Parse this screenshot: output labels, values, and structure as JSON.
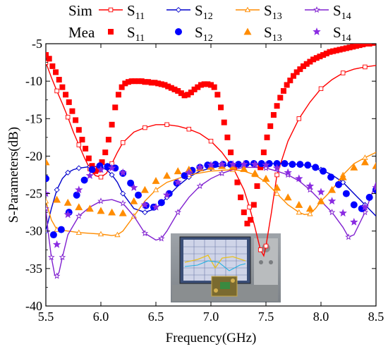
{
  "chart_data": {
    "type": "line",
    "xlabel": "Frequency(GHz)",
    "ylabel": "S-Parameters(dB)",
    "xlim": [
      5.5,
      8.5
    ],
    "ylim": [
      -40,
      -5
    ],
    "xticks": [
      "5.5",
      "6.0",
      "6.5",
      "7.0",
      "7.5",
      "8.0",
      "8.5"
    ],
    "yticks": [
      "-5",
      "-10",
      "-15",
      "-20",
      "-25",
      "-30",
      "-35",
      "-40"
    ],
    "grid": false,
    "legend": {
      "sim_label": "Sim",
      "mea_label": "Mea",
      "placement": "top",
      "entries": [
        {
          "base": "S",
          "sub": "11"
        },
        {
          "base": "S",
          "sub": "12"
        },
        {
          "base": "S",
          "sub": "13"
        },
        {
          "base": "S",
          "sub": "14"
        }
      ]
    },
    "inset": "photo of measurement setup (vector network analyzer with antenna under test)",
    "series": [
      {
        "name": "Sim S11",
        "kind": "sim",
        "color": "#ff0000",
        "marker": "square-open",
        "x": [
          5.5,
          5.55,
          5.6,
          5.65,
          5.7,
          5.75,
          5.8,
          5.85,
          5.9,
          5.95,
          6.0,
          6.05,
          6.1,
          6.15,
          6.2,
          6.3,
          6.4,
          6.5,
          6.6,
          6.7,
          6.8,
          6.9,
          7.0,
          7.1,
          7.2,
          7.3,
          7.35,
          7.4,
          7.45,
          7.48,
          7.5,
          7.55,
          7.6,
          7.7,
          7.8,
          7.9,
          8.0,
          8.1,
          8.2,
          8.3,
          8.4,
          8.5
        ],
        "y": [
          -7.5,
          -9.5,
          -11.3,
          -13.0,
          -14.8,
          -16.8,
          -18.5,
          -20.2,
          -21.7,
          -22.6,
          -22.8,
          -22.3,
          -21.0,
          -19.5,
          -18.2,
          -16.8,
          -16.2,
          -15.8,
          -15.8,
          -16.0,
          -16.4,
          -17.0,
          -18.0,
          -19.5,
          -21.5,
          -24.5,
          -26.8,
          -29.5,
          -32.5,
          -33.3,
          -32.0,
          -27.5,
          -22.5,
          -18.0,
          -15.0,
          -12.8,
          -11.0,
          -9.8,
          -8.9,
          -8.4,
          -8.1,
          -7.9
        ]
      },
      {
        "name": "Sim S12",
        "kind": "sim",
        "color": "#0000cc",
        "marker": "diamond-open",
        "x": [
          5.5,
          5.55,
          5.6,
          5.65,
          5.7,
          5.75,
          5.8,
          5.85,
          5.9,
          5.95,
          6.0,
          6.05,
          6.1,
          6.15,
          6.2,
          6.3,
          6.4,
          6.5,
          6.6,
          6.7,
          6.8,
          6.9,
          7.0,
          7.1,
          7.2,
          7.3,
          7.4,
          7.5,
          7.6,
          7.7,
          7.8,
          7.9,
          8.0,
          8.1,
          8.2,
          8.3,
          8.4,
          8.5
        ],
        "y": [
          -30.0,
          -27.0,
          -24.5,
          -23.0,
          -22.2,
          -21.8,
          -21.6,
          -21.5,
          -21.4,
          -21.4,
          -21.5,
          -21.8,
          -22.5,
          -23.5,
          -25.0,
          -27.0,
          -27.5,
          -27.0,
          -25.5,
          -24.0,
          -22.8,
          -22.0,
          -21.6,
          -21.3,
          -21.2,
          -21.1,
          -21.1,
          -21.0,
          -21.0,
          -21.0,
          -21.1,
          -21.3,
          -21.8,
          -22.5,
          -23.5,
          -25.0,
          -26.5,
          -28.0
        ]
      },
      {
        "name": "Sim S13",
        "kind": "sim",
        "color": "#ff8c00",
        "marker": "triangle-open",
        "x": [
          5.5,
          5.55,
          5.6,
          5.7,
          5.8,
          5.9,
          6.0,
          6.1,
          6.15,
          6.2,
          6.3,
          6.4,
          6.5,
          6.6,
          6.8,
          7.0,
          7.2,
          7.3,
          7.4,
          7.5,
          7.6,
          7.7,
          7.8,
          7.85,
          7.9,
          7.95,
          8.0,
          8.1,
          8.2,
          8.3,
          8.4,
          8.5
        ],
        "y": [
          -26.0,
          -28.5,
          -29.8,
          -30.0,
          -30.2,
          -30.3,
          -30.4,
          -30.6,
          -30.5,
          -30.0,
          -28.0,
          -26.0,
          -24.5,
          -23.5,
          -22.5,
          -22.0,
          -21.8,
          -22.0,
          -22.5,
          -23.5,
          -25.0,
          -26.5,
          -27.5,
          -27.8,
          -27.7,
          -27.0,
          -26.0,
          -24.5,
          -22.5,
          -21.0,
          -20.2,
          -19.5
        ]
      },
      {
        "name": "Sim S14",
        "kind": "sim",
        "color": "#8020d0",
        "marker": "star-open",
        "x": [
          5.5,
          5.52,
          5.55,
          5.58,
          5.6,
          5.62,
          5.65,
          5.7,
          5.8,
          5.9,
          6.0,
          6.1,
          6.2,
          6.3,
          6.4,
          6.5,
          6.55,
          6.6,
          6.7,
          6.8,
          6.9,
          7.0,
          7.1,
          7.2,
          7.3,
          7.4,
          7.5,
          7.6,
          7.7,
          7.8,
          7.9,
          8.0,
          8.1,
          8.2,
          8.25,
          8.3,
          8.4,
          8.5
        ],
        "y": [
          -27.0,
          -30.0,
          -33.5,
          -35.8,
          -36.0,
          -35.5,
          -33.5,
          -30.5,
          -28.0,
          -26.8,
          -26.0,
          -25.8,
          -26.3,
          -28.0,
          -30.3,
          -31.2,
          -31.0,
          -30.0,
          -27.5,
          -25.5,
          -24.0,
          -23.0,
          -22.3,
          -21.8,
          -21.5,
          -21.5,
          -21.6,
          -22.0,
          -22.5,
          -23.3,
          -24.5,
          -26.0,
          -27.5,
          -29.5,
          -30.8,
          -30.5,
          -27.5,
          -23.5
        ]
      },
      {
        "name": "Mea S11",
        "kind": "mea",
        "color": "#ff0000",
        "marker": "square",
        "x": [
          5.5,
          5.53,
          5.56,
          5.59,
          5.62,
          5.65,
          5.68,
          5.71,
          5.74,
          5.77,
          5.8,
          5.83,
          5.86,
          5.89,
          5.92,
          5.95,
          5.98,
          6.01,
          6.04,
          6.07,
          6.1,
          6.13,
          6.16,
          6.19,
          6.22,
          6.25,
          6.28,
          6.31,
          6.34,
          6.37,
          6.4,
          6.43,
          6.46,
          6.49,
          6.52,
          6.55,
          6.58,
          6.61,
          6.64,
          6.67,
          6.7,
          6.73,
          6.76,
          6.79,
          6.82,
          6.85,
          6.88,
          6.91,
          6.94,
          6.97,
          7.0,
          7.03,
          7.06,
          7.09,
          7.12,
          7.15,
          7.18,
          7.21,
          7.24,
          7.27,
          7.3,
          7.33,
          7.36,
          7.39,
          7.42,
          7.45,
          7.48,
          7.51,
          7.54,
          7.57,
          7.6,
          7.63,
          7.66,
          7.69,
          7.72,
          7.75,
          7.78,
          7.81,
          7.84,
          7.87,
          7.9,
          7.93,
          7.96,
          7.99,
          8.02,
          8.05,
          8.08,
          8.11,
          8.14,
          8.17,
          8.2,
          8.23,
          8.26,
          8.29,
          8.32,
          8.35,
          8.38,
          8.41,
          8.44,
          8.47,
          8.5
        ],
        "y": [
          -6.5,
          -7.0,
          -8.0,
          -8.8,
          -9.8,
          -10.8,
          -11.8,
          -12.8,
          -14.0,
          -15.2,
          -16.5,
          -17.8,
          -19.0,
          -20.3,
          -21.3,
          -22.0,
          -21.8,
          -20.8,
          -19.5,
          -17.8,
          -15.8,
          -13.5,
          -11.8,
          -10.8,
          -10.3,
          -10.1,
          -10.0,
          -10.0,
          -10.0,
          -10.0,
          -10.1,
          -10.1,
          -10.2,
          -10.2,
          -10.3,
          -10.4,
          -10.5,
          -10.7,
          -10.9,
          -11.1,
          -11.3,
          -11.6,
          -11.9,
          -11.8,
          -11.5,
          -11.1,
          -10.8,
          -10.5,
          -10.4,
          -10.4,
          -10.5,
          -10.8,
          -11.8,
          -13.5,
          -15.5,
          -17.5,
          -19.5,
          -21.5,
          -23.5,
          -25.5,
          -27.5,
          -29.0,
          -28.5,
          -26.5,
          -24.0,
          -21.5,
          -19.5,
          -17.5,
          -16.0,
          -14.5,
          -13.3,
          -12.2,
          -11.3,
          -10.5,
          -9.9,
          -9.3,
          -8.8,
          -8.4,
          -8.0,
          -7.7,
          -7.4,
          -7.1,
          -6.9,
          -6.7,
          -6.5,
          -6.3,
          -6.1,
          -6.0,
          -5.9,
          -5.8,
          -5.7,
          -5.6,
          -5.5,
          -5.4,
          -5.3,
          -5.2,
          -5.1,
          -5.0,
          -5.0,
          -4.9,
          -4.8
        ]
      },
      {
        "name": "Mea S12",
        "kind": "mea",
        "color": "#0000ff",
        "marker": "circle",
        "x": [
          5.5,
          5.57,
          5.64,
          5.71,
          5.78,
          5.85,
          5.92,
          5.99,
          6.06,
          6.13,
          6.2,
          6.27,
          6.34,
          6.41,
          6.48,
          6.55,
          6.62,
          6.69,
          6.76,
          6.83,
          6.9,
          6.97,
          7.04,
          7.11,
          7.18,
          7.25,
          7.32,
          7.39,
          7.46,
          7.53,
          7.6,
          7.67,
          7.74,
          7.81,
          7.88,
          7.95,
          8.02,
          8.09,
          8.16,
          8.23,
          8.3,
          8.37,
          8.44,
          8.5
        ],
        "y": [
          -23.0,
          -30.5,
          -29.8,
          -27.5,
          -25.2,
          -23.2,
          -21.8,
          -21.3,
          -21.4,
          -21.6,
          -22.3,
          -23.6,
          -25.2,
          -26.6,
          -26.8,
          -26.2,
          -25.0,
          -23.6,
          -22.6,
          -21.9,
          -21.5,
          -21.2,
          -21.1,
          -21.1,
          -21.1,
          -21.1,
          -21.0,
          -21.0,
          -21.0,
          -21.0,
          -21.0,
          -21.0,
          -21.1,
          -21.1,
          -21.2,
          -21.5,
          -22.0,
          -22.8,
          -23.8,
          -25.0,
          -26.5,
          -27.0,
          -25.5,
          -24.5
        ]
      },
      {
        "name": "Mea S13",
        "kind": "mea",
        "color": "#ff8c00",
        "marker": "triangle",
        "x": [
          5.5,
          5.6,
          5.7,
          5.8,
          5.9,
          6.0,
          6.1,
          6.2,
          6.3,
          6.4,
          6.5,
          6.6,
          6.7,
          6.8,
          6.9,
          7.0,
          7.1,
          7.2,
          7.3,
          7.4,
          7.5,
          7.6,
          7.7,
          7.8,
          7.9,
          8.0,
          8.1,
          8.2,
          8.3,
          8.4,
          8.5
        ],
        "y": [
          -20.8,
          -25.8,
          -26.2,
          -26.8,
          -27.0,
          -27.3,
          -27.5,
          -27.6,
          -26.0,
          -24.5,
          -23.3,
          -22.6,
          -22.0,
          -21.8,
          -21.6,
          -21.4,
          -21.3,
          -21.4,
          -21.7,
          -22.3,
          -23.0,
          -24.2,
          -25.5,
          -26.5,
          -27.0,
          -26.0,
          -24.5,
          -22.8,
          -21.5,
          -20.8,
          -21.3
        ]
      },
      {
        "name": "Mea S14",
        "kind": "mea",
        "color": "#8a2be2",
        "marker": "star",
        "x": [
          5.5,
          5.6,
          5.7,
          5.8,
          5.9,
          6.0,
          6.1,
          6.2,
          6.3,
          6.4,
          6.5,
          6.6,
          6.7,
          6.8,
          6.9,
          7.0,
          7.1,
          7.2,
          7.3,
          7.4,
          7.5,
          7.6,
          7.7,
          7.8,
          7.9,
          8.0,
          8.1,
          8.2,
          8.3,
          8.4,
          8.5
        ],
        "y": [
          -25.0,
          -31.8,
          -27.8,
          -24.5,
          -22.6,
          -21.8,
          -21.6,
          -22.2,
          -24.2,
          -26.5,
          -26.8,
          -25.2,
          -23.5,
          -22.2,
          -21.5,
          -21.2,
          -21.1,
          -21.1,
          -21.1,
          -21.1,
          -21.2,
          -21.6,
          -22.2,
          -23.0,
          -24.0,
          -24.8,
          -26.0,
          -27.6,
          -28.8,
          -26.8,
          -24.2
        ]
      }
    ]
  }
}
